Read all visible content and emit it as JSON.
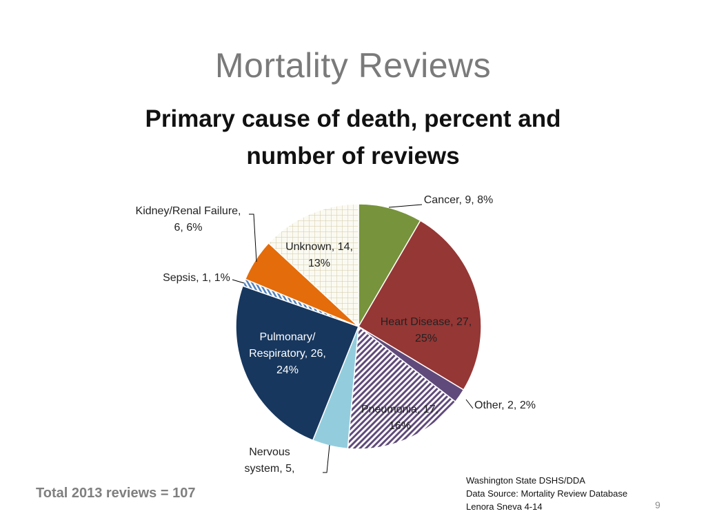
{
  "slide": {
    "title": "Mortality Reviews",
    "total_text": "Total 2013 reviews = 107",
    "source_lines": [
      "Washington State DSHS/DDA",
      "Data Source: Mortality Review Database",
      "Lenora Sneva 4-14"
    ],
    "page_number": "9"
  },
  "chart_data": {
    "type": "pie",
    "title_lines": [
      "Primary cause of death, percent and",
      "number of reviews"
    ],
    "slices": [
      {
        "category": "Cancer",
        "count": 9,
        "percent": 8,
        "color": "#77933c",
        "pattern": "solid",
        "label_lines": [
          "Cancer, 9, 8%"
        ]
      },
      {
        "category": "Heart Disease",
        "count": 27,
        "percent": 25,
        "color": "#953735",
        "pattern": "solid",
        "label_lines": [
          "Heart Disease, 27,",
          "25%"
        ]
      },
      {
        "category": "Other",
        "count": 2,
        "percent": 2,
        "color": "#604a7b",
        "pattern": "solid",
        "label_lines": [
          "Other, 2, 2%"
        ]
      },
      {
        "category": "Pneumonia",
        "count": 17,
        "percent": 16,
        "color": "#604a7b",
        "pattern": "diagonal-hatch",
        "label_lines": [
          "Pneumonia, 17,",
          "16%"
        ]
      },
      {
        "category": "Nervous system",
        "count": 5,
        "percent": 5,
        "color": "#93cddd",
        "pattern": "solid",
        "label_lines": [
          "Nervous",
          "system, 5,"
        ]
      },
      {
        "category": "Pulmonary/Respiratory",
        "count": 26,
        "percent": 24,
        "color": "#17375e",
        "pattern": "solid",
        "label_lines": [
          "Pulmonary/",
          "Respiratory, 26,",
          "24%"
        ]
      },
      {
        "category": "Sepsis",
        "count": 1,
        "percent": 1,
        "color": "#4f81bd",
        "pattern": "stripe",
        "label_lines": [
          "Sepsis, 1, 1%"
        ]
      },
      {
        "category": "Kidney/Renal Failure",
        "count": 6,
        "percent": 6,
        "color": "#e46c0a",
        "pattern": "solid",
        "label_lines": [
          "Kidney/Renal Failure,",
          "6, 6%"
        ]
      },
      {
        "category": "Unknown",
        "count": 14,
        "percent": 13,
        "color": "#d8d4b8",
        "pattern": "grid",
        "label_lines": [
          "Unknown, 14,",
          "13%"
        ]
      }
    ]
  }
}
